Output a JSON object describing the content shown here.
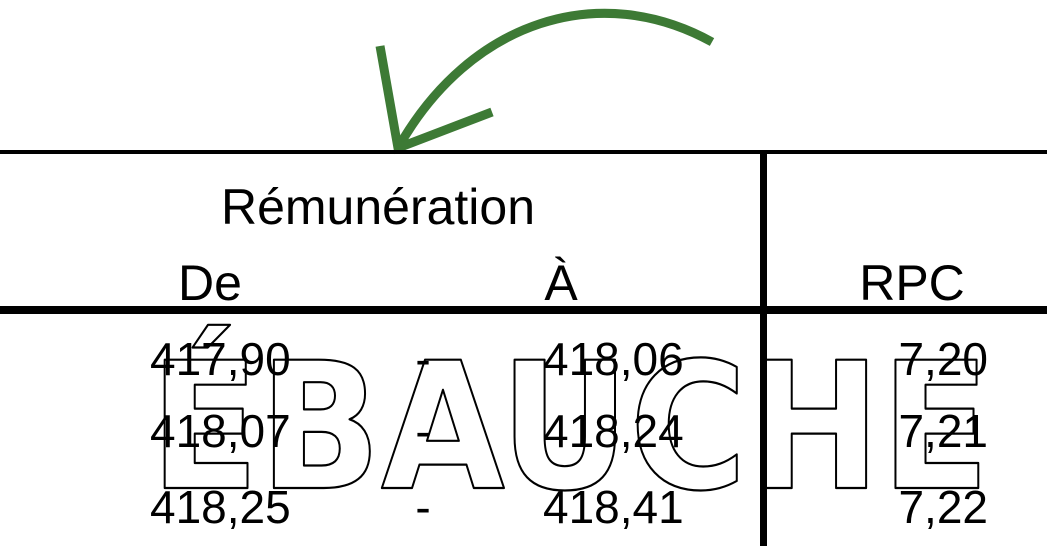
{
  "table": {
    "header_group": "Rémunération",
    "col_from": "De",
    "col_to": "À",
    "col_rpc": "RPC",
    "separator": "-",
    "rows": [
      {
        "from": "417,90",
        "to": "418,06",
        "rpc": "7,20"
      },
      {
        "from": "418,07",
        "to": "418,24",
        "rpc": "7,21"
      },
      {
        "from": "418,25",
        "to": "418,41",
        "rpc": "7,22"
      }
    ]
  },
  "watermark": "ÉBAUCHE",
  "arrow": {
    "color": "#3d7a35",
    "icon": "curved-arrow-icon"
  }
}
